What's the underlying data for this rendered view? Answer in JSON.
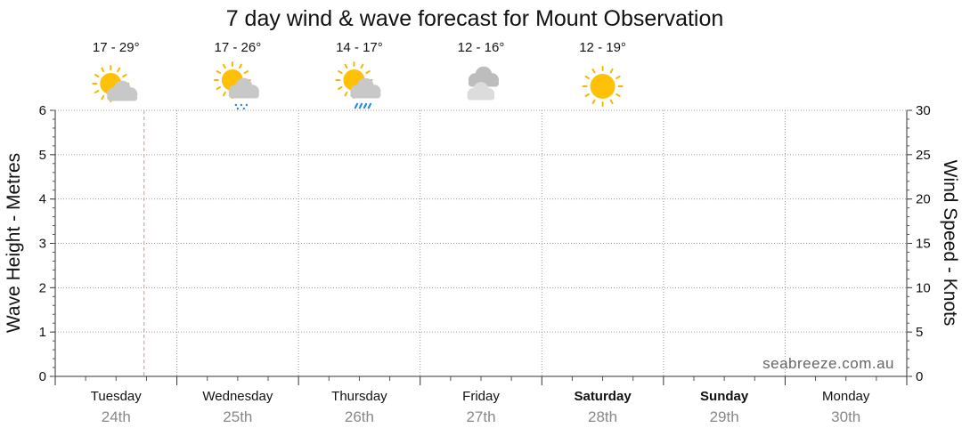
{
  "chart_data": {
    "type": "line",
    "title": "7 day wind & wave forecast for Mount Observation",
    "ylabel_left": "Wave Height - Metres",
    "ylabel_right": "Wind Speed - Knots",
    "ylim_left": [
      0,
      6
    ],
    "ylim_right": [
      0,
      30
    ],
    "yticks_left": [
      "0",
      "1",
      "2",
      "3",
      "4",
      "5",
      "6"
    ],
    "yticks_right": [
      "0",
      "5",
      "10",
      "15",
      "20",
      "25",
      "30"
    ],
    "grid": true,
    "current_time_marker": "Tuesday 24th",
    "days": [
      {
        "name": "Tuesday",
        "date": "24th",
        "bold": false,
        "temp": "17 - 29°",
        "icon": "partly-cloudy-icon"
      },
      {
        "name": "Wednesday",
        "date": "25th",
        "bold": false,
        "temp": "17 - 26°",
        "icon": "partly-cloudy-showers-icon"
      },
      {
        "name": "Thursday",
        "date": "26th",
        "bold": false,
        "temp": "14 - 17°",
        "icon": "partly-cloudy-rain-icon"
      },
      {
        "name": "Friday",
        "date": "27th",
        "bold": false,
        "temp": "12 - 16°",
        "icon": "cloudy-icon"
      },
      {
        "name": "Saturday",
        "date": "28th",
        "bold": true,
        "temp": "12 - 19°",
        "icon": "sunny-icon"
      },
      {
        "name": "Sunday",
        "date": "29th",
        "bold": true,
        "temp": "",
        "icon": ""
      },
      {
        "name": "Monday",
        "date": "30th",
        "bold": false,
        "temp": "",
        "icon": ""
      }
    ],
    "series": []
  },
  "watermark": "seabreeze.com.au",
  "colors": {
    "sun": "#FFC107",
    "sun_ray": "#F5B800",
    "cloud": "#C8C8C8",
    "rain": "#1E88E5",
    "now_marker": "#E8A090",
    "grid": "#999999"
  }
}
